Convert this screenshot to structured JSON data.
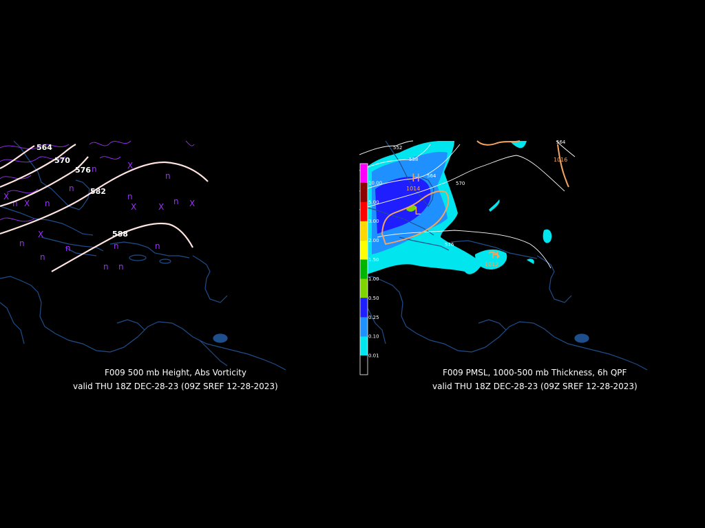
{
  "left_panel": {
    "title": "F009 500 mb Height, Abs Vorticity",
    "valid": "valid THU 18Z DEC-28-23 (09Z SREF 12-28-2023)",
    "height_labels": [
      "564",
      "570",
      "576",
      "582",
      "588"
    ],
    "vorticity_symbols": [
      "X",
      "n"
    ],
    "colors": {
      "height": "#ffe4e1",
      "vorticity": "#9b30ff",
      "coast": "#1f4e8c"
    }
  },
  "right_panel": {
    "title": "F009 PMSL, 1000-500 mb Thickness, 6h QPF",
    "valid": "valid THU 18Z DEC-28-23 (09Z SREF 12-28-2023)",
    "thickness_labels": [
      "552",
      "558",
      "564",
      "570",
      "576",
      "564"
    ],
    "pressure_labels": [
      "1014",
      "1016",
      "1012"
    ],
    "pressure_centers": [
      "H",
      "L",
      "H"
    ],
    "colorbar": {
      "labels": [
        "10.00",
        "5.00",
        "3.00",
        "2.00",
        "1.50",
        "1.00",
        "0.50",
        "0.25",
        "0.10",
        "0.01"
      ],
      "colors": [
        "#ff00ff",
        "#8b0000",
        "#ff0000",
        "#ffd700",
        "#ffff00",
        "#00b400",
        "#7fd400",
        "#1e1eff",
        "#1e90ff",
        "#00e5ee",
        "#000000"
      ]
    },
    "colors": {
      "qpf_light": "#00e5ee",
      "qpf_medium": "#1e90ff",
      "qpf_heavy": "#1e1eff",
      "isobar": "#f4a460",
      "thickness": "#ffffff",
      "coast": "#1f4e8c"
    }
  }
}
